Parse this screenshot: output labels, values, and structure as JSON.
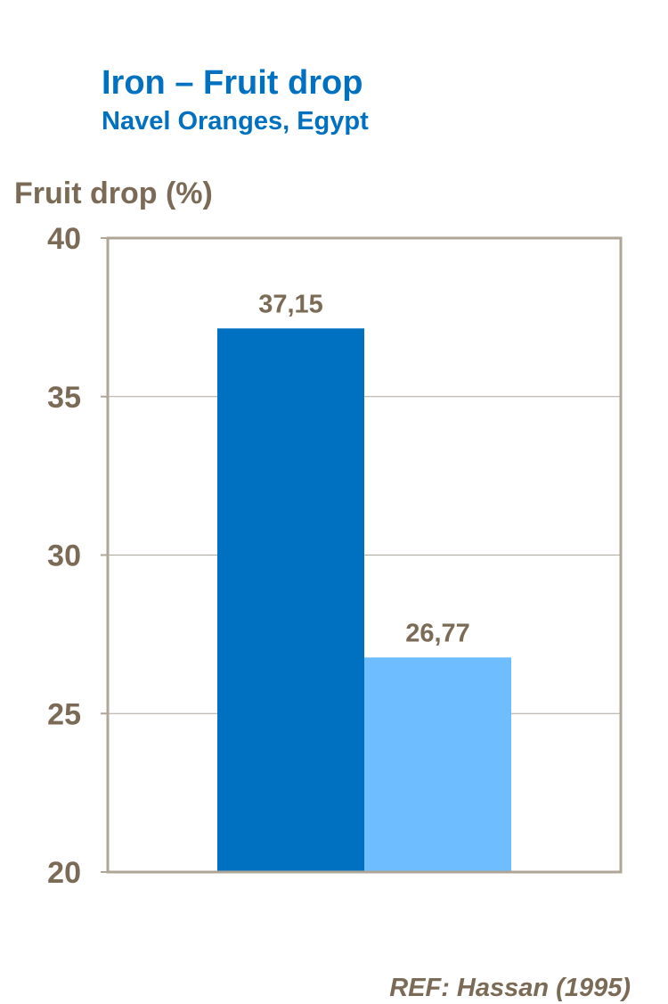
{
  "title": "Iron – Fruit drop",
  "subtitle": "Navel Oranges, Egypt",
  "ylabel": "Fruit drop (%)",
  "reference": "REF: Hassan (1995)",
  "colors": {
    "title": "#0070c0",
    "text": "#7a6a56",
    "frame": "#b0a698",
    "grid": "#b0a698"
  },
  "chart_data": {
    "type": "bar",
    "title": "Iron – Fruit drop",
    "subtitle": "Navel Oranges, Egypt",
    "xlabel": "",
    "ylabel": "Fruit drop (%)",
    "ylim": [
      20,
      40
    ],
    "yticks": [
      20,
      25,
      30,
      35,
      40
    ],
    "grid": true,
    "series": [
      {
        "values": [
          37.15
        ],
        "label": "37,15",
        "color": "#0070c0"
      },
      {
        "values": [
          26.77
        ],
        "label": "26,77",
        "color": "#6ebeff"
      }
    ]
  }
}
